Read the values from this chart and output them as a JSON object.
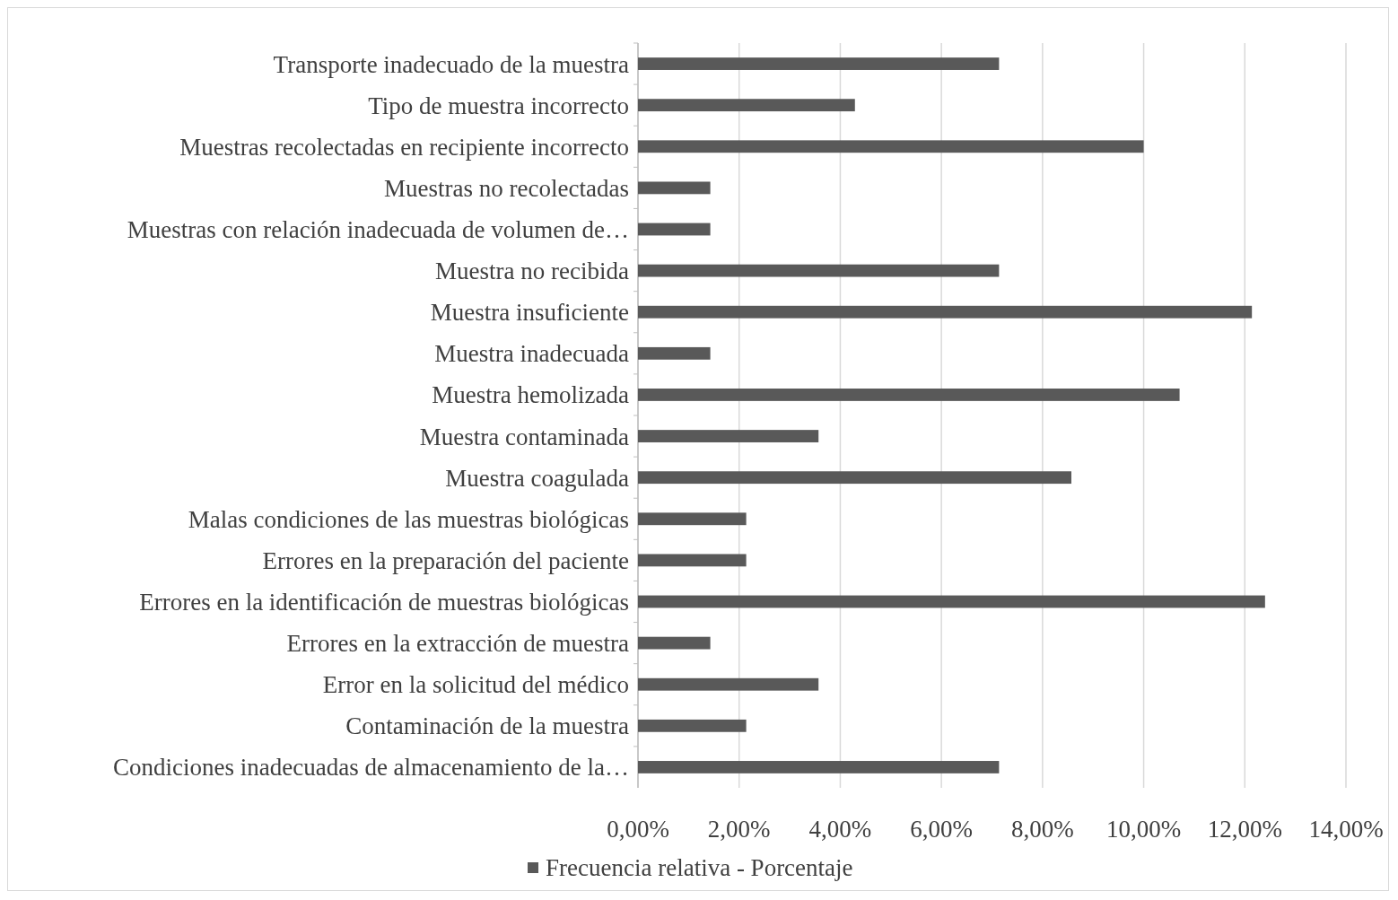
{
  "chart_data": {
    "type": "bar",
    "orientation": "horizontal",
    "categories": [
      "Transporte inadecuado de la muestra",
      "Tipo de muestra incorrecto",
      "Muestras recolectadas en recipiente incorrecto",
      "Muestras no recolectadas",
      "Muestras con relación inadecuada de volumen de…",
      "Muestra no recibida",
      "Muestra insuficiente",
      "Muestra inadecuada",
      "Muestra hemolizada",
      "Muestra contaminada",
      "Muestra coagulada",
      "Malas condiciones de las muestras biológicas",
      "Errores en la preparación del paciente",
      "Errores en la identificación de muestras biológicas",
      "Errores en la extracción de muestra",
      "Error en la solicitud del médico",
      "Contaminación de la muestra",
      "Condiciones inadecuadas de almacenamiento de la…"
    ],
    "series": [
      {
        "name": "Frecuencia relativa - Porcentaje",
        "color": "#595959",
        "values": [
          7.14,
          4.29,
          10.0,
          1.43,
          1.43,
          7.14,
          12.14,
          1.43,
          10.71,
          3.57,
          8.57,
          2.14,
          2.14,
          12.4,
          1.43,
          3.57,
          2.14,
          7.14
        ]
      }
    ],
    "xlim": [
      0,
      14
    ],
    "xticks": [
      {
        "value": 0,
        "label": "0,00%"
      },
      {
        "value": 2,
        "label": "2,00%"
      },
      {
        "value": 4,
        "label": "4,00%"
      },
      {
        "value": 6,
        "label": "6,00%"
      },
      {
        "value": 8,
        "label": "8,00%"
      },
      {
        "value": 10,
        "label": "10,00%"
      },
      {
        "value": 12,
        "label": "12,00%"
      },
      {
        "value": 14,
        "label": "14,00%"
      }
    ],
    "grid": "x",
    "legend": "bottom"
  }
}
